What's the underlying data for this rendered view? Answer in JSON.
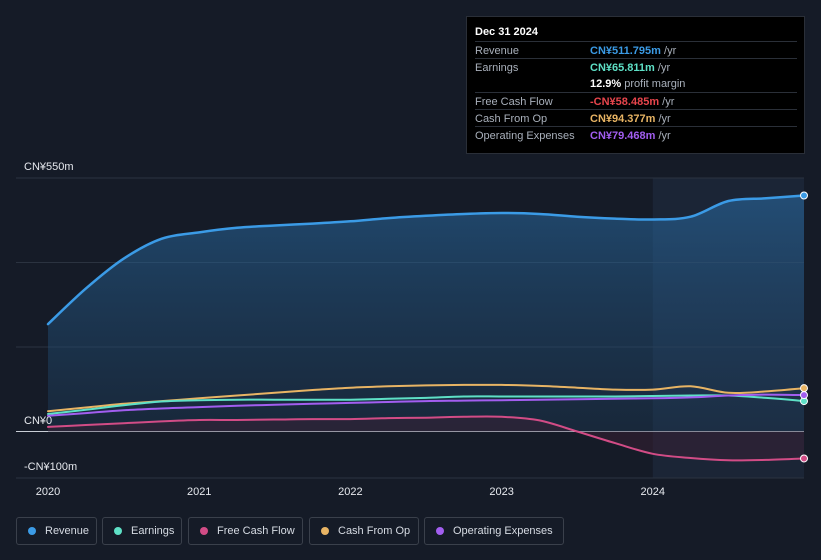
{
  "tooltip": {
    "date": "Dec 31 2024",
    "rows": [
      {
        "label": "Revenue",
        "value": "CN¥511.795m",
        "unit": "/yr",
        "color": "#3b9be6"
      },
      {
        "label": "Earnings",
        "value": "CN¥65.811m",
        "unit": "/yr",
        "color": "#5ee0c6"
      },
      {
        "label": "",
        "value": "12.9%",
        "unit": "profit margin",
        "color": "#ffffff"
      },
      {
        "label": "Free Cash Flow",
        "value": "-CN¥58.485m",
        "unit": "/yr",
        "color": "#e8454c"
      },
      {
        "label": "Cash From Op",
        "value": "CN¥94.377m",
        "unit": "/yr",
        "color": "#e8b464"
      },
      {
        "label": "Operating Expenses",
        "value": "CN¥79.468m",
        "unit": "/yr",
        "color": "#a25ef0"
      }
    ]
  },
  "legend": [
    {
      "label": "Revenue",
      "color": "#3b9be6"
    },
    {
      "label": "Earnings",
      "color": "#5ee0c6"
    },
    {
      "label": "Free Cash Flow",
      "color": "#d24c86"
    },
    {
      "label": "Cash From Op",
      "color": "#e8b464"
    },
    {
      "label": "Operating Expenses",
      "color": "#a25ef0"
    }
  ],
  "chart_data": {
    "type": "area",
    "y_axis_labels": [
      "CN¥550m",
      "CN¥0",
      "-CN¥100m"
    ],
    "ylim": [
      -100,
      550
    ],
    "xlim": [
      2020.0,
      2025.0
    ],
    "x_ticks": [
      {
        "value": 2020,
        "label": "2020"
      },
      {
        "value": 2021,
        "label": "2021"
      },
      {
        "value": 2022,
        "label": "2022"
      },
      {
        "value": 2023,
        "label": "2023"
      },
      {
        "value": 2024,
        "label": "2024"
      }
    ],
    "forecast_start": 2024.0,
    "grid": true,
    "legend_position": "bottom",
    "series": [
      {
        "name": "Revenue",
        "color": "#3b9be6",
        "x": [
          2020.0,
          2020.25,
          2020.5,
          2020.75,
          2021.0,
          2021.25,
          2021.5,
          2021.75,
          2022.0,
          2022.25,
          2022.5,
          2022.75,
          2023.0,
          2023.25,
          2023.5,
          2023.75,
          2024.0,
          2024.25,
          2024.5,
          2024.75,
          2025.0
        ],
        "values": [
          233,
          310,
          375,
          418,
          432,
          442,
          447,
          451,
          456,
          463,
          468,
          472,
          474,
          472,
          466,
          462,
          460,
          466,
          500,
          506,
          512
        ]
      },
      {
        "name": "Earnings",
        "color": "#5ee0c6",
        "x": [
          2020.0,
          2020.25,
          2020.5,
          2020.75,
          2021.0,
          2021.25,
          2021.5,
          2021.75,
          2022.0,
          2022.25,
          2022.5,
          2022.75,
          2023.0,
          2023.25,
          2023.5,
          2023.75,
          2024.0,
          2024.25,
          2024.5,
          2024.75,
          2025.0
        ],
        "values": [
          38,
          47,
          57,
          65,
          68,
          69,
          69,
          69,
          69,
          71,
          73,
          76,
          76,
          76,
          76,
          76,
          77,
          78,
          78,
          73,
          66
        ]
      },
      {
        "name": "Free Cash Flow",
        "color": "#d24c86",
        "x": [
          2020.0,
          2020.25,
          2020.5,
          2020.75,
          2021.0,
          2021.25,
          2021.5,
          2021.75,
          2022.0,
          2022.25,
          2022.5,
          2022.75,
          2023.0,
          2023.25,
          2023.5,
          2023.75,
          2024.0,
          2024.25,
          2024.5,
          2024.75,
          2025.0
        ],
        "values": [
          10,
          14,
          18,
          22,
          25,
          25,
          26,
          27,
          27,
          29,
          30,
          32,
          32,
          24,
          0,
          -25,
          -48,
          -57,
          -62,
          -61,
          -58
        ]
      },
      {
        "name": "Cash From Op",
        "color": "#e8b464",
        "x": [
          2020.0,
          2020.25,
          2020.5,
          2020.75,
          2021.0,
          2021.25,
          2021.5,
          2021.75,
          2022.0,
          2022.25,
          2022.5,
          2022.75,
          2023.0,
          2023.25,
          2023.5,
          2023.75,
          2024.0,
          2024.25,
          2024.5,
          2024.75,
          2025.0
        ],
        "values": [
          44,
          52,
          60,
          66,
          72,
          78,
          84,
          90,
          95,
          98,
          100,
          101,
          101,
          99,
          95,
          91,
          91,
          98,
          84,
          87,
          94
        ]
      },
      {
        "name": "Operating Expenses",
        "color": "#a25ef0",
        "x": [
          2020.0,
          2020.25,
          2020.5,
          2020.75,
          2021.0,
          2021.25,
          2021.5,
          2021.75,
          2022.0,
          2022.25,
          2022.5,
          2022.75,
          2023.0,
          2023.25,
          2023.5,
          2023.75,
          2024.0,
          2024.25,
          2024.5,
          2024.75,
          2025.0
        ],
        "values": [
          34,
          40,
          46,
          50,
          53,
          56,
          58,
          60,
          62,
          64,
          66,
          67,
          68,
          69,
          70,
          71,
          72,
          74,
          78,
          80,
          79
        ]
      }
    ]
  }
}
